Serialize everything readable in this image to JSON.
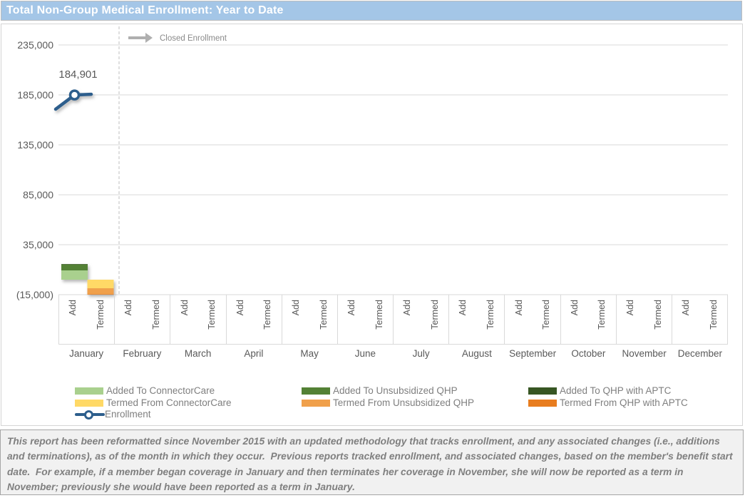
{
  "title": {
    "text": "Total Non-Group Medical Enrollment: Year to Date"
  },
  "chart_data": {
    "type": "bar",
    "subtype": "stacked-columns-with-enrollment-line",
    "title": "Total Non-Group Medical Enrollment: Year to Date",
    "categories": [
      "January",
      "February",
      "March",
      "April",
      "May",
      "June",
      "July",
      "August",
      "September",
      "October",
      "November",
      "December"
    ],
    "sub_categories": [
      "Add",
      "Termed"
    ],
    "y_axis": {
      "tick_labels": [
        "235,000",
        "185,000",
        "135,000",
        "85,000",
        "35,000",
        "(15,000)"
      ],
      "tick_values": [
        235000,
        185000,
        135000,
        85000,
        35000,
        -15000
      ],
      "min": -15000,
      "max": 235000,
      "grid": true
    },
    "values_estimated_from_pixels": true,
    "series": [
      {
        "name": "Added To ConnectorCare",
        "color": "#A9D08E",
        "stack": "Add",
        "values_by_month": {
          "January": 9300
        }
      },
      {
        "name": "Added To Unsubsidized QHP",
        "color": "#538135",
        "stack": "Add",
        "values_by_month": {
          "January": 5900
        }
      },
      {
        "name": "Added To QHP with APTC",
        "color": "#375623",
        "stack": "Add",
        "values_by_month": {
          "January": 500
        }
      },
      {
        "name": "Termed From ConnectorCare",
        "color": "#FFD966",
        "stack": "Termed",
        "values_by_month": {
          "January": -8600
        }
      },
      {
        "name": "Termed From Unsubsidized QHP",
        "color": "#F0A04B",
        "stack": "Termed",
        "values_by_month": {
          "January": -5900
        }
      },
      {
        "name": "Termed From QHP with APTC",
        "color": "#E87D1F",
        "stack": "Termed",
        "values_by_month": {
          "January": -500
        }
      }
    ],
    "line_series": {
      "name": "Enrollment",
      "color": "#2D5E8C",
      "points": [
        {
          "x": "lead-in",
          "value": 170700
        },
        {
          "x": "January",
          "value": 184901,
          "label": "184,901"
        }
      ]
    },
    "annotation": {
      "text": "Closed Enrollment",
      "arrow": "right"
    },
    "legend_position": "bottom"
  },
  "legend": {
    "items": [
      {
        "label": "Added To ConnectorCare",
        "color": "#A9D08E"
      },
      {
        "label": "Termed From ConnectorCare",
        "color": "#FFD966"
      },
      {
        "label": "Enrollment",
        "color": "#2D5E8C",
        "type": "line"
      },
      {
        "label": "Added To Unsubsidized QHP",
        "color": "#538135"
      },
      {
        "label": "Termed From Unsubsidized QHP",
        "color": "#F0A04B"
      },
      {
        "label": "Added To QHP with APTC",
        "color": "#375623"
      },
      {
        "label": "Termed From QHP with APTC",
        "color": "#E87D1F"
      }
    ]
  },
  "footer": {
    "text": "This report has been reformatted since November 2015 with an updated methodology that tracks enrollment, and any associated changes (i.e., additions and terminations), as of the month in which they occur.  Previous reports tracked enrollment, and associated changes, based on the member's benefit start date.  For example, if a member began coverage in January and then terminates her coverage in November, she will now be reported as a term in November; previously she would have been reported as a term in January."
  }
}
